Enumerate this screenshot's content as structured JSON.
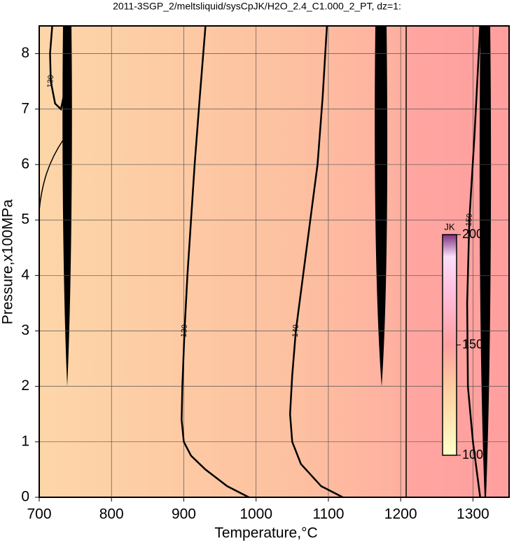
{
  "chart_data": {
    "type": "contour",
    "title": "2011-3SGP_2/meltsliquid/sysCpJK/H2O_2.4_C1.000_2_PT, dz=1:",
    "x_label": "Temperature,°C",
    "y_label": "Pressure,x100MPa",
    "xlim": [
      700,
      1350
    ],
    "ylim": [
      0,
      8.5
    ],
    "xticks": [
      700,
      800,
      900,
      1000,
      1100,
      1200,
      1300
    ],
    "yticks": [
      0,
      1,
      2,
      3,
      4,
      5,
      6,
      7,
      8
    ],
    "grid": true,
    "contours": [
      {
        "level": 130,
        "x": [
          930,
          922,
          915,
          910,
          905,
          901,
          898,
          897,
          900,
          910,
          930,
          960,
          990
        ],
        "y": [
          8.5,
          7.2,
          6,
          5,
          4,
          3,
          2,
          1.4,
          1,
          0.75,
          0.5,
          0.2,
          0
        ]
      },
      {
        "level": 140,
        "x": [
          1098,
          1092,
          1085,
          1075,
          1065,
          1055,
          1050,
          1047,
          1050,
          1062,
          1090,
          1120
        ],
        "y": [
          8.5,
          7.2,
          6,
          5,
          4,
          3,
          2.2,
          1.5,
          1,
          0.6,
          0.2,
          0
        ]
      },
      {
        "level": 130,
        "x": [
          718,
          715,
          716,
          722,
          730,
          735
        ],
        "y": [
          8.5,
          8,
          7.5,
          7.1,
          7,
          7.3
        ]
      },
      {
        "level": 150,
        "x": [
          1310,
          1302,
          1295,
          1292,
          1293,
          1300,
          1310
        ],
        "y": [
          8.5,
          6.5,
          5,
          3.5,
          2,
          1,
          0
        ]
      }
    ],
    "colorbar": {
      "label": "JK",
      "lim": [
        100,
        200
      ],
      "ticks": [
        100,
        150,
        200
      ]
    }
  }
}
